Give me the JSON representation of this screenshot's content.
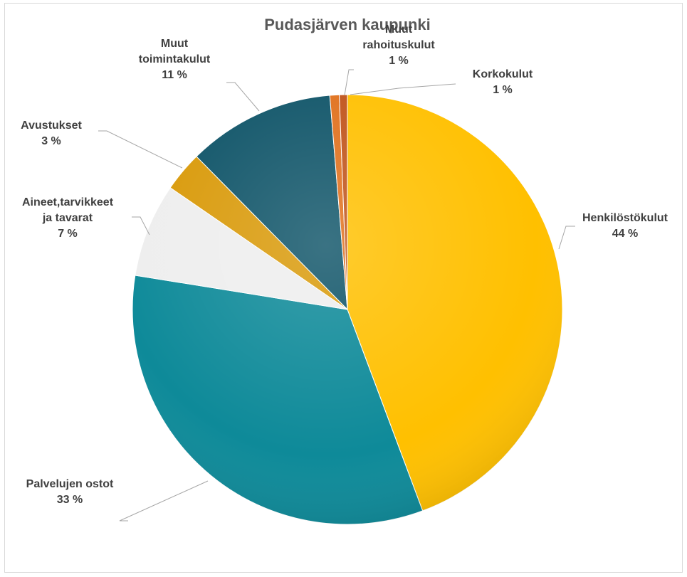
{
  "chart_data": {
    "type": "pie",
    "title": "Pudasjärven kaupunki",
    "legend": "none",
    "slices": [
      {
        "label": [
          "Henkilöstökulut"
        ],
        "value": 44,
        "value_text": "44 %",
        "color": "#ffc000"
      },
      {
        "label": [
          "Palvelujen ostot"
        ],
        "value": 33,
        "value_text": "33 %",
        "color": "#0e8a99"
      },
      {
        "label": [
          "Aineet,tarvikkeet",
          "ja tavarat"
        ],
        "value": 7,
        "value_text": "7 %",
        "color": "#eeeeee"
      },
      {
        "label": [
          "Avustukset"
        ],
        "value": 3,
        "value_text": "3 %",
        "color": "#d99a0a"
      },
      {
        "label": [
          "Muut",
          "toimintakulut"
        ],
        "value": 11,
        "value_text": "11 %",
        "color": "#0f5468"
      },
      {
        "label": [
          "Muut",
          "rahoituskulut"
        ],
        "value": 0.7,
        "value_text": "1 %",
        "color": "#e0701c"
      },
      {
        "label": [
          "Korkokulut"
        ],
        "value": 0.6,
        "value_text": "1 %",
        "color": "#c0531a"
      }
    ]
  }
}
